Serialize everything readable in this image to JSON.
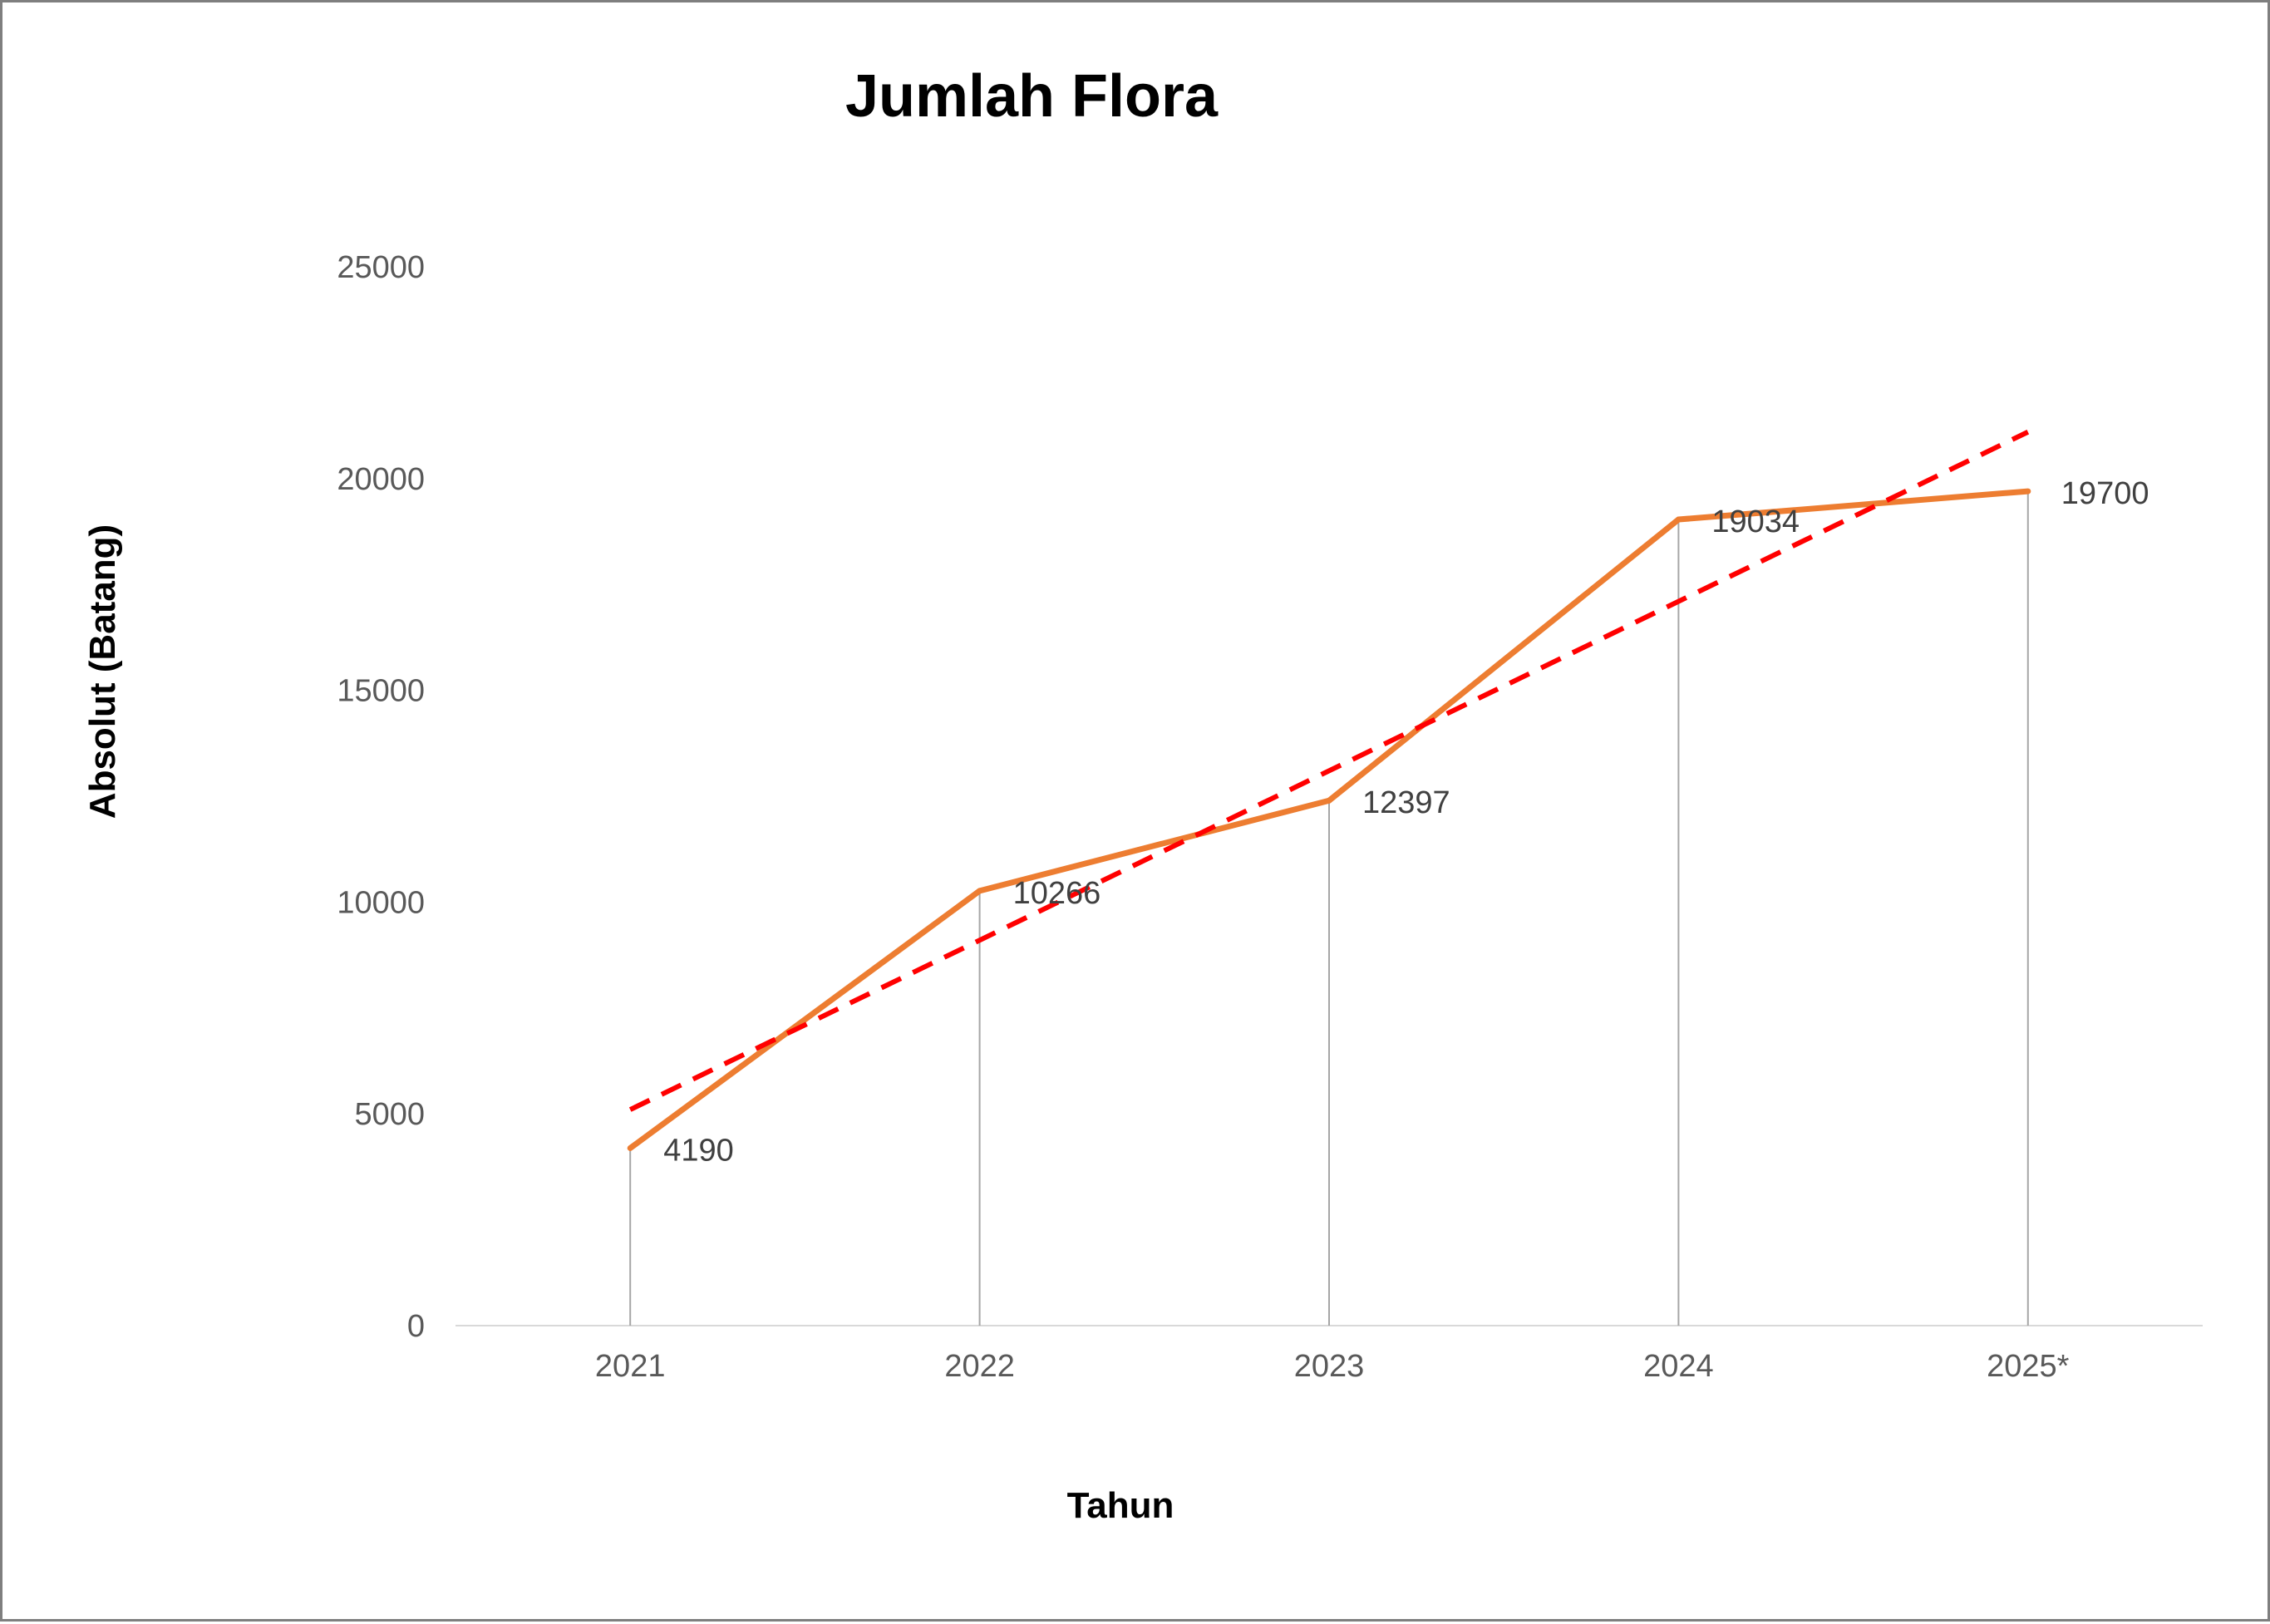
{
  "chart_data": {
    "type": "line",
    "title": "Jumlah Flora",
    "xlabel": "Tahun",
    "ylabel": "Absolut (Batang)",
    "categories": [
      "2021",
      "2022",
      "2023",
      "2024",
      "2025*"
    ],
    "series": [
      {
        "values": [
          4190,
          10266,
          12397,
          19034,
          19700
        ],
        "color": "#ED7D31",
        "style": "solid",
        "data_labels": true
      },
      {
        "values": [
          5100,
          9100,
          13100,
          17100,
          21100
        ],
        "color": "#FF0000",
        "style": "dashed",
        "kind": "linear-trendline"
      }
    ],
    "ylim": [
      0,
      25000
    ],
    "yticks": [
      "0",
      "5000",
      "10000",
      "15000",
      "20000",
      "25000"
    ],
    "drop_lines": true,
    "grid": false,
    "legend": "none",
    "colors": {
      "axis": "#d9d9d9",
      "drop_line": "#a6a6a6",
      "tick_text": "#595959",
      "label_text": "#404040"
    }
  }
}
